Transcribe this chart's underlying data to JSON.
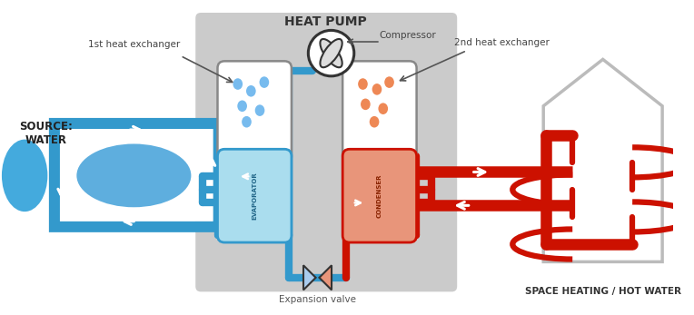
{
  "title": "HEAT PUMP",
  "bg_color": "#ffffff",
  "gray_box_color": "#cbcbcb",
  "blue_color": "#3399cc",
  "blue_light": "#aaddee",
  "blue_mid": "#55bbdd",
  "red_color": "#cc1100",
  "orange_fill": "#e8957a",
  "white_fill": "#ffffff",
  "dark": "#333333",
  "gray_house": "#bbbbbb",
  "label_1he": "1st heat exchanger",
  "label_2he": "2nd heat exchanger",
  "source_text": "SOURCE:\nWATER",
  "label_evap": "EVAPORATOR",
  "label_cond": "CONDENSER",
  "label_comp": "Compressor",
  "label_exp": "Expansion valve",
  "label_space": "SPACE HEATING / HOT WATER"
}
